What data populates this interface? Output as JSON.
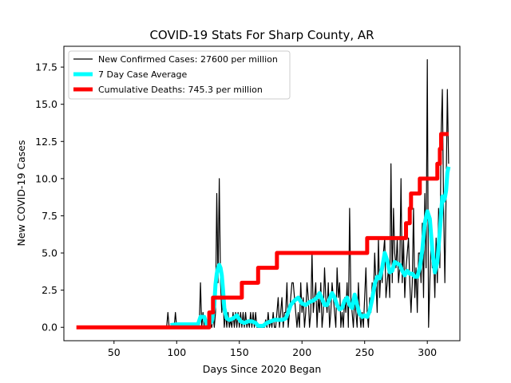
{
  "chart_data": {
    "type": "line",
    "title": "COVID-19 Stats For Sharp County, AR",
    "xlabel": "Days Since 2020 Began",
    "ylabel": "New COVID-19 Cases",
    "xlim": [
      10,
      326
    ],
    "ylim": [
      -0.9,
      18.9
    ],
    "x_ticks": [
      50,
      100,
      150,
      200,
      250,
      300
    ],
    "y_ticks": [
      0.0,
      2.5,
      5.0,
      7.5,
      10.0,
      12.5,
      15.0,
      17.5
    ],
    "y_tick_labels": [
      "0.0",
      "2.5",
      "5.0",
      "7.5",
      "10.0",
      "12.5",
      "15.0",
      "17.5"
    ],
    "grid": false,
    "legend_position": "top-left",
    "series": [
      {
        "name": "New Confirmed Cases: 27600 per million",
        "color": "#000000",
        "values": [
          [
            92,
            0
          ],
          [
            93,
            1
          ],
          [
            94,
            0
          ],
          [
            98,
            0
          ],
          [
            99,
            1
          ],
          [
            100,
            0
          ],
          [
            118,
            0
          ],
          [
            119,
            3
          ],
          [
            120,
            0
          ],
          [
            121,
            1
          ],
          [
            122,
            0
          ],
          [
            126,
            0
          ],
          [
            127,
            1
          ],
          [
            128,
            0
          ],
          [
            129,
            1
          ],
          [
            130,
            0
          ],
          [
            131,
            1
          ],
          [
            132,
            9
          ],
          [
            133,
            3
          ],
          [
            134,
            10
          ],
          [
            135,
            3
          ],
          [
            136,
            1
          ],
          [
            137,
            2
          ],
          [
            138,
            0
          ],
          [
            139,
            1
          ],
          [
            140,
            0
          ],
          [
            141,
            1
          ],
          [
            142,
            0
          ],
          [
            143,
            0.5
          ],
          [
            144,
            0
          ],
          [
            145,
            1
          ],
          [
            146,
            0
          ],
          [
            147,
            1
          ],
          [
            148,
            0
          ],
          [
            149,
            1
          ],
          [
            150,
            0
          ],
          [
            151,
            1
          ],
          [
            152,
            0
          ],
          [
            153,
            1
          ],
          [
            154,
            0
          ],
          [
            155,
            1
          ],
          [
            156,
            0
          ],
          [
            157,
            0.5
          ],
          [
            158,
            0
          ],
          [
            159,
            1
          ],
          [
            160,
            0
          ],
          [
            161,
            1
          ],
          [
            162,
            0
          ],
          [
            163,
            1
          ],
          [
            164,
            0
          ],
          [
            165,
            0
          ],
          [
            166,
            0
          ],
          [
            167,
            0
          ],
          [
            168,
            0
          ],
          [
            169,
            0
          ],
          [
            170,
            0
          ],
          [
            171,
            0.5
          ],
          [
            172,
            0
          ],
          [
            173,
            1
          ],
          [
            174,
            0
          ],
          [
            175,
            0.5
          ],
          [
            176,
            0
          ],
          [
            177,
            1
          ],
          [
            178,
            0
          ],
          [
            179,
            0
          ],
          [
            180,
            1
          ],
          [
            181,
            2
          ],
          [
            182,
            0
          ],
          [
            183,
            1
          ],
          [
            184,
            2
          ],
          [
            185,
            0
          ],
          [
            186,
            1
          ],
          [
            187,
            1
          ],
          [
            188,
            3
          ],
          [
            189,
            0
          ],
          [
            190,
            1
          ],
          [
            191,
            2
          ],
          [
            192,
            3
          ],
          [
            193,
            3
          ],
          [
            194,
            2
          ],
          [
            195,
            1
          ],
          [
            196,
            0
          ],
          [
            197,
            1
          ],
          [
            198,
            0
          ],
          [
            199,
            3
          ],
          [
            200,
            1
          ],
          [
            201,
            2
          ],
          [
            202,
            0
          ],
          [
            203,
            1
          ],
          [
            204,
            3
          ],
          [
            205,
            2
          ],
          [
            206,
            0
          ],
          [
            207,
            1
          ],
          [
            208,
            5
          ],
          [
            209,
            1
          ],
          [
            210,
            2
          ],
          [
            211,
            3
          ],
          [
            212,
            0
          ],
          [
            213,
            2
          ],
          [
            214,
            1
          ],
          [
            215,
            3
          ],
          [
            216,
            0
          ],
          [
            217,
            1
          ],
          [
            218,
            4
          ],
          [
            219,
            2
          ],
          [
            220,
            1
          ],
          [
            221,
            3
          ],
          [
            222,
            0
          ],
          [
            223,
            1
          ],
          [
            224,
            3
          ],
          [
            225,
            2
          ],
          [
            226,
            1
          ],
          [
            227,
            0
          ],
          [
            228,
            4
          ],
          [
            229,
            2
          ],
          [
            230,
            3
          ],
          [
            231,
            0
          ],
          [
            232,
            1
          ],
          [
            233,
            0
          ],
          [
            234,
            2
          ],
          [
            235,
            1
          ],
          [
            236,
            3
          ],
          [
            237,
            0
          ],
          [
            238,
            8
          ],
          [
            239,
            2
          ],
          [
            240,
            1
          ],
          [
            241,
            0
          ],
          [
            242,
            2
          ],
          [
            243,
            1
          ],
          [
            244,
            0
          ],
          [
            245,
            3
          ],
          [
            246,
            1
          ],
          [
            247,
            0
          ],
          [
            248,
            1
          ],
          [
            249,
            0
          ],
          [
            250,
            2
          ],
          [
            251,
            4
          ],
          [
            252,
            1
          ],
          [
            253,
            0
          ],
          [
            254,
            2
          ],
          [
            255,
            1
          ],
          [
            256,
            3
          ],
          [
            257,
            2
          ],
          [
            258,
            5
          ],
          [
            259,
            3
          ],
          [
            260,
            1
          ],
          [
            261,
            6
          ],
          [
            262,
            2
          ],
          [
            263,
            4
          ],
          [
            264,
            3
          ],
          [
            265,
            5
          ],
          [
            266,
            6
          ],
          [
            267,
            2
          ],
          [
            268,
            3
          ],
          [
            269,
            4
          ],
          [
            270,
            2
          ],
          [
            271,
            11
          ],
          [
            272,
            3
          ],
          [
            273,
            8
          ],
          [
            274,
            5
          ],
          [
            275,
            4
          ],
          [
            276,
            6
          ],
          [
            277,
            3
          ],
          [
            278,
            4
          ],
          [
            279,
            10
          ],
          [
            280,
            3
          ],
          [
            281,
            6
          ],
          [
            282,
            2
          ],
          [
            283,
            4
          ],
          [
            284,
            5
          ],
          [
            285,
            6
          ],
          [
            286,
            3
          ],
          [
            287,
            1
          ],
          [
            288,
            3
          ],
          [
            289,
            8
          ],
          [
            290,
            2
          ],
          [
            291,
            4
          ],
          [
            292,
            1
          ],
          [
            293,
            5
          ],
          [
            294,
            5
          ],
          [
            295,
            3
          ],
          [
            296,
            7
          ],
          [
            297,
            2
          ],
          [
            298,
            9
          ],
          [
            299,
            4
          ],
          [
            300,
            18
          ],
          [
            301,
            0
          ],
          [
            302,
            3
          ],
          [
            303,
            6
          ],
          [
            304,
            4
          ],
          [
            305,
            5
          ],
          [
            306,
            2
          ],
          [
            307,
            6
          ],
          [
            308,
            3
          ],
          [
            309,
            8
          ],
          [
            310,
            4
          ],
          [
            311,
            13
          ],
          [
            312,
            16
          ],
          [
            313,
            8
          ],
          [
            314,
            3
          ],
          [
            315,
            9
          ],
          [
            316,
            16
          ],
          [
            317,
            11
          ]
        ]
      },
      {
        "name": "7 Day Case Average",
        "color": "#00ffff",
        "values": [
          [
            95,
            0.15
          ],
          [
            100,
            0.2
          ],
          [
            104,
            0.2
          ],
          [
            117,
            0.2
          ],
          [
            119,
            0.7
          ],
          [
            122,
            0.7
          ],
          [
            124,
            0.2
          ],
          [
            126,
            0.2
          ],
          [
            128,
            0.4
          ],
          [
            130,
            1.5
          ],
          [
            131,
            2.9
          ],
          [
            132,
            3.6
          ],
          [
            133,
            4
          ],
          [
            134,
            4.2
          ],
          [
            135,
            4
          ],
          [
            136,
            3.5
          ],
          [
            137,
            2.5
          ],
          [
            138,
            1.3
          ],
          [
            139,
            0.9
          ],
          [
            140,
            0.6
          ],
          [
            142,
            0.5
          ],
          [
            145,
            0.6
          ],
          [
            148,
            0.8
          ],
          [
            151,
            0.4
          ],
          [
            154,
            0.3
          ],
          [
            157,
            0.4
          ],
          [
            160,
            0.4
          ],
          [
            163,
            0.3
          ],
          [
            165,
            0.1
          ],
          [
            169,
            0.1
          ],
          [
            172,
            0.3
          ],
          [
            175,
            0.4
          ],
          [
            178,
            0.5
          ],
          [
            181,
            0.5
          ],
          [
            184,
            0.5
          ],
          [
            187,
            0.6
          ],
          [
            189,
            1
          ],
          [
            191,
            1.5
          ],
          [
            194,
            1.8
          ],
          [
            197,
            2
          ],
          [
            200,
            1.6
          ],
          [
            203,
            1.5
          ],
          [
            206,
            1.7
          ],
          [
            209,
            1.8
          ],
          [
            212,
            2
          ],
          [
            214,
            2.3
          ],
          [
            216,
            1.9
          ],
          [
            218,
            1.5
          ],
          [
            220,
            1.5
          ],
          [
            222,
            1.9
          ],
          [
            224,
            2.3
          ],
          [
            226,
            2
          ],
          [
            228,
            1.5
          ],
          [
            230,
            1.2
          ],
          [
            232,
            1.3
          ],
          [
            234,
            1.8
          ],
          [
            236,
            2
          ],
          [
            238,
            1.5
          ],
          [
            240,
            1.3
          ],
          [
            242,
            2.2
          ],
          [
            244,
            1.5
          ],
          [
            246,
            0.9
          ],
          [
            248,
            0.7
          ],
          [
            250,
            0.8
          ],
          [
            252,
            0.7
          ],
          [
            254,
            1.1
          ],
          [
            256,
            1.9
          ],
          [
            258,
            2.9
          ],
          [
            260,
            3.4
          ],
          [
            262,
            3.3
          ],
          [
            264,
            4
          ],
          [
            266,
            5
          ],
          [
            268,
            4.5
          ],
          [
            270,
            3.7
          ],
          [
            272,
            3.8
          ],
          [
            274,
            4.4
          ],
          [
            276,
            4.3
          ],
          [
            278,
            4.2
          ],
          [
            280,
            3.8
          ],
          [
            282,
            3.5
          ],
          [
            284,
            3.8
          ],
          [
            286,
            3.6
          ],
          [
            288,
            3.6
          ],
          [
            290,
            3.4
          ],
          [
            292,
            3.4
          ],
          [
            294,
            4
          ],
          [
            296,
            5.2
          ],
          [
            298,
            7
          ],
          [
            300,
            7.8
          ],
          [
            302,
            7.3
          ],
          [
            304,
            5.2
          ],
          [
            306,
            3.7
          ],
          [
            308,
            4.4
          ],
          [
            310,
            6.5
          ],
          [
            312,
            8.8
          ],
          [
            313,
            8.5
          ],
          [
            314,
            8.7
          ],
          [
            315,
            9.2
          ],
          [
            316,
            10.4
          ],
          [
            317,
            10.8
          ]
        ]
      },
      {
        "name": "Cumulative Deaths: 745.3 per million",
        "color": "#ff0000",
        "values": [
          [
            20,
            0
          ],
          [
            126,
            0
          ],
          [
            126,
            1
          ],
          [
            129,
            1
          ],
          [
            129,
            2
          ],
          [
            152,
            2
          ],
          [
            152,
            3
          ],
          [
            165,
            3
          ],
          [
            165,
            4
          ],
          [
            180,
            4
          ],
          [
            180,
            5
          ],
          [
            252,
            5
          ],
          [
            252,
            6
          ],
          [
            283,
            6
          ],
          [
            283,
            7
          ],
          [
            286,
            7
          ],
          [
            286,
            8
          ],
          [
            287,
            8
          ],
          [
            287,
            9
          ],
          [
            294,
            9
          ],
          [
            294,
            10
          ],
          [
            308,
            10
          ],
          [
            308,
            11
          ],
          [
            310,
            11
          ],
          [
            310,
            12
          ],
          [
            311,
            12
          ],
          [
            311,
            13
          ],
          [
            317,
            13
          ]
        ]
      }
    ]
  }
}
